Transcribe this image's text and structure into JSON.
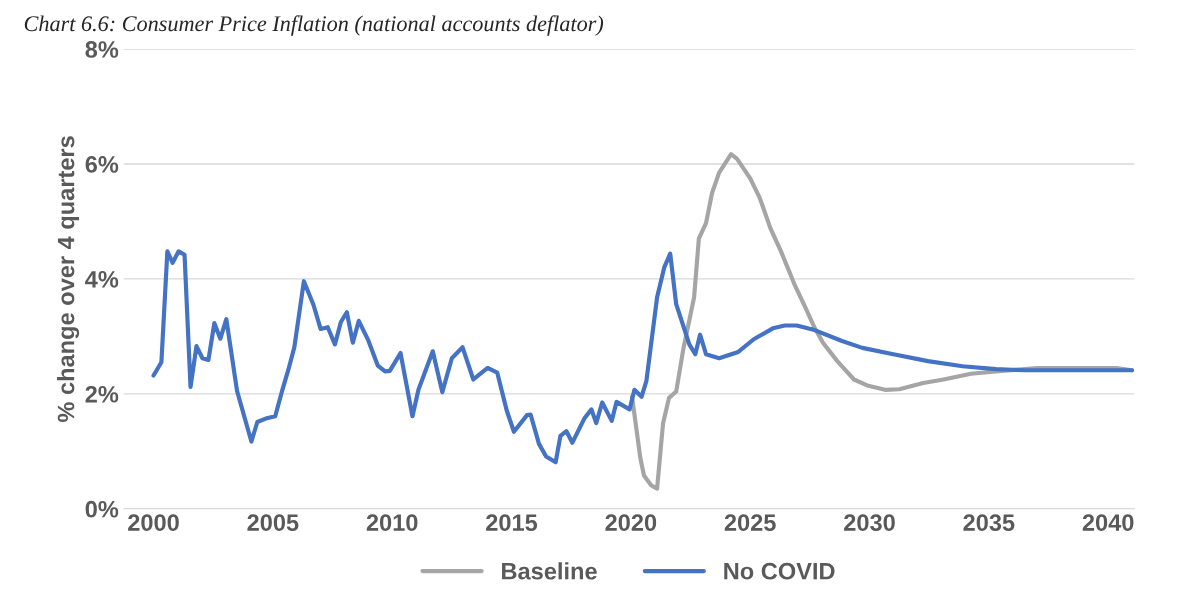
{
  "chart_data": {
    "type": "line",
    "title": "Chart 6.6: Consumer Price Inflation (national accounts deflator)",
    "ylabel": "% change over 4 quarters",
    "xlim": [
      1998.75,
      2041.1
    ],
    "xticks": [
      2000,
      2005,
      2010,
      2015,
      2020,
      2025,
      2030,
      2035,
      2040
    ],
    "ylim": [
      0,
      8
    ],
    "yticks": [
      {
        "value": 0,
        "label": "0%"
      },
      {
        "value": 2,
        "label": "2%"
      },
      {
        "value": 4,
        "label": "4%"
      },
      {
        "value": 6,
        "label": "6%"
      },
      {
        "value": 8,
        "label": "8%"
      }
    ],
    "grid": "y",
    "legend": "bottom",
    "marker": "none",
    "line_style": "solid",
    "series": [
      {
        "name": "Baseline",
        "color": "#a5a5a5",
        "x": [
          2020.05,
          2020.4,
          2020.55,
          2020.85,
          2021.1,
          2021.35,
          2021.6,
          2021.9,
          2022.2,
          2022.65,
          2022.85,
          2023.15,
          2023.4,
          2023.7,
          2024.2,
          2024.45,
          2025.0,
          2025.4,
          2025.85,
          2026.3,
          2026.85,
          2027.35,
          2027.7,
          2028.05,
          2028.65,
          2029.35,
          2029.95,
          2030.65,
          2031.25,
          2032.25,
          2033.1,
          2034.25,
          2035.3,
          2037.0,
          2040.35,
          2041.0
        ],
        "values": [
          1.95,
          0.88,
          0.58,
          0.41,
          0.35,
          1.49,
          1.93,
          2.04,
          2.78,
          3.68,
          4.7,
          4.97,
          5.49,
          5.85,
          6.17,
          6.09,
          5.75,
          5.41,
          4.88,
          4.47,
          3.91,
          3.47,
          3.15,
          2.89,
          2.57,
          2.25,
          2.14,
          2.07,
          2.08,
          2.19,
          2.25,
          2.35,
          2.39,
          2.45,
          2.45,
          2.41
        ]
      },
      {
        "name": "No COVID",
        "color": "#4472c4",
        "x": [
          2000.0,
          2000.33,
          2000.58,
          2000.8,
          2001.05,
          2001.3,
          2001.55,
          2001.8,
          2002.05,
          2002.3,
          2002.55,
          2002.8,
          2003.05,
          2003.5,
          2003.8,
          2004.1,
          2004.35,
          2004.7,
          2005.1,
          2005.4,
          2005.65,
          2005.9,
          2006.3,
          2006.7,
          2007.0,
          2007.3,
          2007.6,
          2007.85,
          2008.1,
          2008.35,
          2008.6,
          2009.0,
          2009.4,
          2009.7,
          2009.9,
          2010.35,
          2010.85,
          2011.1,
          2011.7,
          2012.1,
          2012.5,
          2012.95,
          2013.4,
          2014.0,
          2014.4,
          2014.8,
          2015.1,
          2015.65,
          2015.8,
          2016.15,
          2016.45,
          2016.85,
          2017.05,
          2017.3,
          2017.55,
          2018.05,
          2018.35,
          2018.55,
          2018.8,
          2019.2,
          2019.4,
          2019.95,
          2020.15,
          2020.45,
          2020.65,
          2021.1,
          2021.4,
          2021.65,
          2021.9,
          2022.45,
          2022.7,
          2022.9,
          2023.15,
          2023.7,
          2024.5,
          2025.15,
          2025.95,
          2026.45,
          2026.95,
          2027.7,
          2028.85,
          2029.7,
          2031.0,
          2032.45,
          2033.9,
          2035.3,
          2036.5,
          2041.0
        ],
        "values": [
          2.32,
          2.55,
          4.48,
          4.28,
          4.48,
          4.42,
          2.12,
          2.83,
          2.62,
          2.59,
          3.23,
          2.96,
          3.3,
          2.05,
          1.61,
          1.17,
          1.51,
          1.57,
          1.61,
          2.07,
          2.42,
          2.81,
          3.96,
          3.55,
          3.13,
          3.16,
          2.86,
          3.25,
          3.42,
          2.89,
          3.27,
          2.93,
          2.49,
          2.39,
          2.4,
          2.71,
          1.61,
          2.07,
          2.74,
          2.03,
          2.62,
          2.81,
          2.25,
          2.45,
          2.37,
          1.71,
          1.34,
          1.63,
          1.64,
          1.13,
          0.91,
          0.81,
          1.27,
          1.35,
          1.15,
          1.57,
          1.73,
          1.49,
          1.85,
          1.53,
          1.86,
          1.73,
          2.07,
          1.95,
          2.22,
          3.68,
          4.2,
          4.44,
          3.56,
          2.86,
          2.69,
          3.03,
          2.69,
          2.62,
          2.73,
          2.95,
          3.14,
          3.19,
          3.19,
          3.11,
          2.92,
          2.8,
          2.69,
          2.57,
          2.48,
          2.43,
          2.41,
          2.41
        ]
      }
    ]
  }
}
